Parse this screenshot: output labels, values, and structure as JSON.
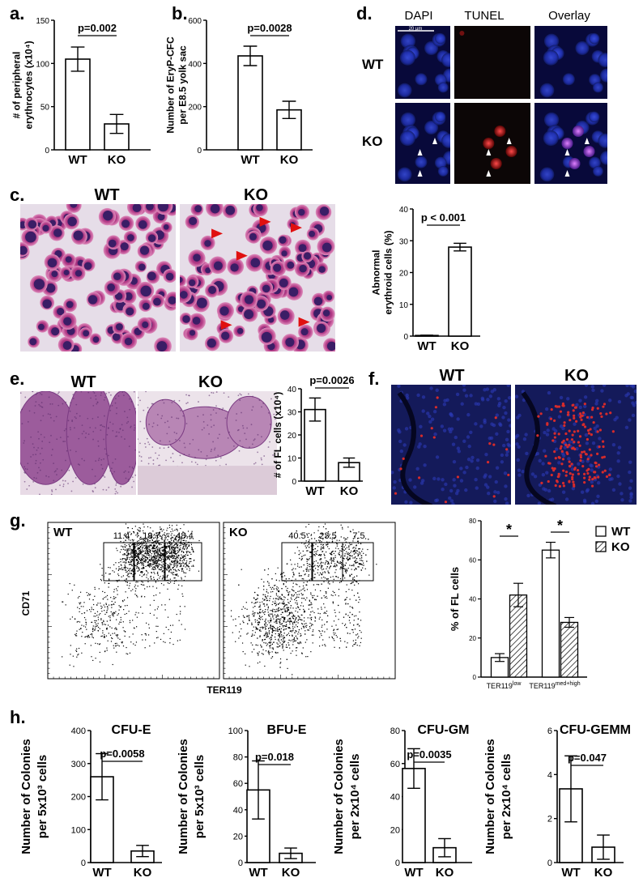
{
  "figure": {
    "panel_letters": {
      "a": "a.",
      "b": "b.",
      "c": "c.",
      "d": "d.",
      "e": "e.",
      "f": "f.",
      "g": "g.",
      "h": "h."
    },
    "group_labels": {
      "wt": "WT",
      "ko": "KO"
    },
    "micrograph_labels": {
      "dapi": "DAPI",
      "tunel": "TUNEL",
      "overlay": "Overlay",
      "scale_bar": "20 µm"
    },
    "flow": {
      "x_label": "TER119",
      "y_label": "CD71",
      "wt_gates": [
        "11.4",
        "19.7",
        "48.4"
      ],
      "ko_gates": [
        "40.5",
        "23.5",
        "7.5"
      ]
    },
    "colors": {
      "bar_fill": "#ffffff",
      "stroke": "#000000",
      "arrowhead": "#e01010",
      "fluor_blue": "#1f2a9c",
      "fluor_red": "#d62b2b"
    }
  },
  "chart_data": [
    {
      "id": "a",
      "type": "bar",
      "ylabel": [
        "# of peripheral",
        "erythrocytes (x10⁴)"
      ],
      "categories": [
        "WT",
        "KO"
      ],
      "values": [
        105,
        30
      ],
      "errors": [
        14,
        11
      ],
      "ylim": [
        0,
        150
      ],
      "yticks": [
        0,
        50,
        100,
        150
      ],
      "pvalue": "p=0.002"
    },
    {
      "id": "b",
      "type": "bar",
      "ylabel": [
        "Number of EryP-CFC",
        "per E8.5 yolk sac"
      ],
      "categories": [
        "WT",
        "KO"
      ],
      "values": [
        435,
        185
      ],
      "errors": [
        45,
        40
      ],
      "ylim": [
        0,
        600
      ],
      "yticks": [
        0,
        200,
        400,
        600
      ],
      "pvalue": "p=0.0028"
    },
    {
      "id": "c",
      "type": "bar",
      "ylabel": [
        "Abnormal",
        "erythroid cells (%)"
      ],
      "categories": [
        "WT",
        "KO"
      ],
      "values": [
        0.2,
        28
      ],
      "errors": [
        0.1,
        1.2
      ],
      "ylim": [
        0,
        40
      ],
      "yticks": [
        0,
        10,
        20,
        30,
        40
      ],
      "pvalue": "p < 0.001"
    },
    {
      "id": "e",
      "type": "bar",
      "ylabel": [
        "# of FL cells (x10⁴)"
      ],
      "categories": [
        "WT",
        "KO"
      ],
      "values": [
        31,
        8
      ],
      "errors": [
        5,
        2
      ],
      "ylim": [
        0,
        40
      ],
      "yticks": [
        0,
        10,
        20,
        30,
        40
      ],
      "pvalue": "p=0.0026"
    },
    {
      "id": "g",
      "type": "bar",
      "ylabel": [
        "% of FL cells"
      ],
      "categories": [
        "TER119low",
        "TER119med+high"
      ],
      "category_main": [
        "TER119",
        "TER119"
      ],
      "category_sup": [
        "low",
        "med+high"
      ],
      "series": [
        {
          "name": "WT",
          "values": [
            10,
            65
          ],
          "errors": [
            2,
            4
          ]
        },
        {
          "name": "KO",
          "values": [
            42,
            28
          ],
          "errors": [
            6,
            2.5
          ]
        }
      ],
      "ylim": [
        0,
        80
      ],
      "yticks": [
        0,
        20,
        40,
        60,
        80
      ],
      "significance": [
        "*",
        "*"
      ],
      "legend": "top-right"
    },
    {
      "id": "h1",
      "type": "bar",
      "title": "CFU-E",
      "ylabel": [
        "Number of Colonies",
        "per 5x10³ cells"
      ],
      "categories": [
        "WT",
        "KO"
      ],
      "values": [
        260,
        35
      ],
      "errors": [
        70,
        17
      ],
      "ylim": [
        0,
        400
      ],
      "yticks": [
        0,
        100,
        200,
        300,
        400
      ],
      "pvalue": "p=0.0058"
    },
    {
      "id": "h2",
      "type": "bar",
      "title": "BFU-E",
      "ylabel": [
        "Number of Colonies",
        "per 5x10³ cells"
      ],
      "categories": [
        "WT",
        "KO"
      ],
      "values": [
        55,
        7
      ],
      "errors": [
        22,
        4
      ],
      "ylim": [
        0,
        100
      ],
      "yticks": [
        0,
        20,
        40,
        60,
        80,
        100
      ],
      "pvalue": "p=0.018"
    },
    {
      "id": "h3",
      "type": "bar",
      "title": "CFU-GM",
      "ylabel": [
        "Number of Colonies",
        "per 2x10⁴ cells"
      ],
      "categories": [
        "WT",
        "KO"
      ],
      "values": [
        57,
        9
      ],
      "errors": [
        12,
        5.5
      ],
      "ylim": [
        0,
        80
      ],
      "yticks": [
        0,
        20,
        40,
        60,
        80
      ],
      "pvalue": "p=0.0035"
    },
    {
      "id": "h4",
      "type": "bar",
      "title": "CFU-GEMM",
      "ylabel": [
        "Number of Colonies",
        "per 2x10⁴ cells"
      ],
      "categories": [
        "WT",
        "KO"
      ],
      "values": [
        3.35,
        0.7
      ],
      "errors": [
        1.5,
        0.55
      ],
      "ylim": [
        0,
        6
      ],
      "yticks": [
        0,
        2,
        4,
        6
      ],
      "pvalue": "p=0.047"
    }
  ]
}
